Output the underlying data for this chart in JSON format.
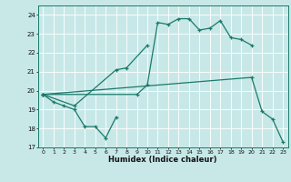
{
  "xlabel": "Humidex (Indice chaleur)",
  "xlim": [
    -0.5,
    23.5
  ],
  "ylim": [
    17,
    24.5
  ],
  "yticks": [
    17,
    18,
    19,
    20,
    21,
    22,
    23,
    24
  ],
  "xticks": [
    0,
    1,
    2,
    3,
    4,
    5,
    6,
    7,
    8,
    9,
    10,
    11,
    12,
    13,
    14,
    15,
    16,
    17,
    18,
    19,
    20,
    21,
    22,
    23
  ],
  "bg_color": "#c8e8e8",
  "grid_color": "#e0f0f0",
  "line_color": "#1a7a6a",
  "lines_data": [
    {
      "x": [
        0,
        1,
        2,
        3,
        4,
        5,
        6,
        7
      ],
      "y": [
        19.8,
        19.4,
        19.2,
        19.0,
        18.1,
        18.1,
        17.5,
        18.6
      ]
    },
    {
      "x": [
        0,
        3,
        7,
        8,
        10
      ],
      "y": [
        19.8,
        19.2,
        21.1,
        21.2,
        22.4
      ]
    },
    {
      "x": [
        0,
        9,
        10,
        11,
        12,
        13,
        14,
        15,
        16,
        17,
        18,
        19,
        20
      ],
      "y": [
        19.8,
        19.8,
        20.3,
        23.6,
        23.5,
        23.8,
        23.8,
        23.2,
        23.3,
        23.7,
        22.8,
        22.7,
        22.4
      ]
    },
    {
      "x": [
        0,
        20,
        21,
        22,
        23
      ],
      "y": [
        19.8,
        20.7,
        18.9,
        18.5,
        17.3
      ]
    }
  ]
}
